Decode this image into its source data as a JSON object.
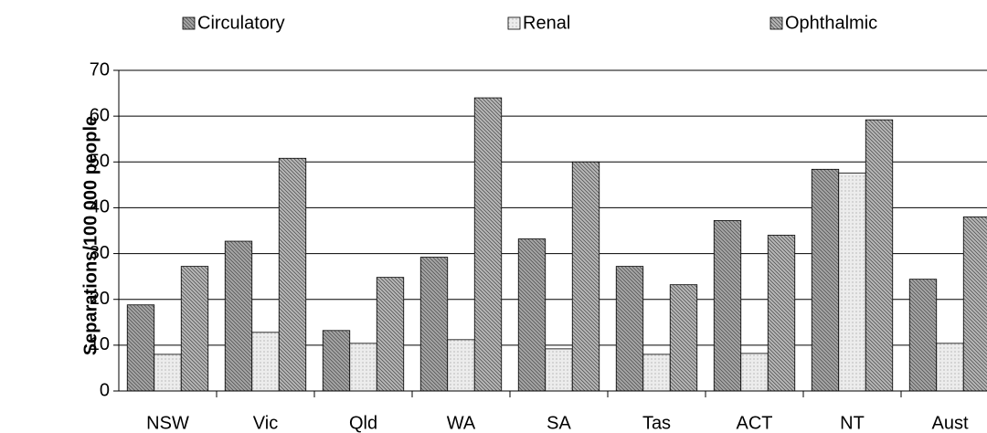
{
  "chart_data": {
    "type": "bar",
    "y_label": "Separations/100 000 people",
    "categories": [
      "NSW",
      "Vic",
      "Qld",
      "WA",
      "SA",
      "Tas",
      "ACT",
      "NT",
      "Aust"
    ],
    "series": [
      {
        "name": "Circulatory",
        "color": "#a6a6a6",
        "values": [
          18.8,
          32.7,
          13.2,
          29.2,
          33.2,
          27.2,
          37.2,
          48.4,
          24.4
        ]
      },
      {
        "name": "Renal",
        "color": "#ececec",
        "values": [
          8,
          12.8,
          10.4,
          11.2,
          9.2,
          8,
          8.2,
          47.6,
          10.4
        ]
      },
      {
        "name": "Ophthalmic",
        "color": "#b8b8b8",
        "values": [
          27.2,
          50.8,
          24.8,
          64,
          50,
          23.2,
          34,
          59.2,
          38
        ]
      }
    ],
    "ylim": [
      0,
      70
    ],
    "yticks": [
      0,
      10,
      20,
      30,
      40,
      50,
      60,
      70
    ],
    "grid": true
  }
}
